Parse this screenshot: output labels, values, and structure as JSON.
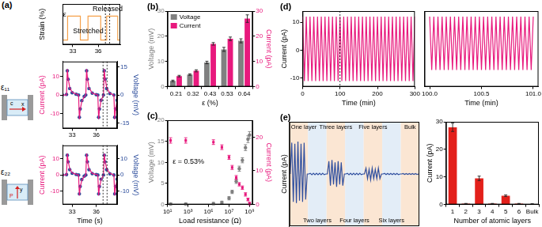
{
  "chart_data": [
    {
      "type": "line",
      "title": "(a)",
      "y_label": "Strain (%)",
      "x": [
        31.8,
        32.4,
        32.4,
        33.9,
        33.9,
        34.8,
        34.8,
        36.3,
        36.3,
        37.0,
        37.0,
        38.3,
        38.3,
        38.6
      ],
      "series": [
        {
          "color": "#f5a04a",
          "values": [
            0,
            0,
            0.53,
            0.53,
            0,
            0,
            0.53,
            0.53,
            0,
            0,
            0.53,
            0.53,
            0,
            0
          ]
        }
      ],
      "xlim": [
        31.8,
        38.6
      ],
      "xticks": [
        33,
        36
      ],
      "ylim": [
        -0.1,
        0.8
      ],
      "tick_labels": "x",
      "grid": false,
      "vlines": [
        36.85,
        37.35
      ],
      "annotations": [
        "ε",
        "Released",
        "Stretched"
      ]
    },
    {
      "type": "line",
      "y_label": "Current (pA)",
      "y2_label": "Voltage (mV)",
      "schematic": [
        "ε₁₁",
        "x",
        "c"
      ],
      "x": [
        31.8,
        32.3,
        32.4,
        32.5,
        32.7,
        33.0,
        33.5,
        33.8,
        33.9,
        34.0,
        34.2,
        34.5,
        34.7,
        34.8,
        34.9,
        35.1,
        35.5,
        36.0,
        36.2,
        36.3,
        36.4,
        36.6,
        36.9,
        37.0,
        37.1,
        37.3,
        37.7,
        38.2,
        38.3,
        38.4,
        38.6
      ],
      "series": [
        {
          "color": "#e8197d",
          "values": [
            0,
            0,
            14,
            9,
            4,
            1.5,
            0.5,
            0,
            -13,
            -8,
            -3.5,
            -1,
            0,
            14,
            9,
            4,
            1,
            0.3,
            0,
            -13,
            -8,
            -3,
            0,
            14,
            9,
            4,
            1,
            0,
            -13,
            -8,
            -3
          ]
        },
        {
          "color": "#2b4c9b",
          "type": "scatter",
          "marker": "circle",
          "axis": "y2",
          "values": [
            0,
            0.3,
            13,
            8.5,
            3.5,
            1.2,
            0.4,
            0,
            -12,
            -7.5,
            -3,
            -0.8,
            0,
            13,
            8.5,
            3.5,
            1,
            0.2,
            0,
            -12,
            -7.5,
            -2.8,
            0,
            13,
            8.5,
            3.5,
            0.8,
            0,
            -12,
            -7.5,
            -2.8
          ]
        }
      ],
      "xlim": [
        31.8,
        38.6
      ],
      "xticks": [
        33,
        36
      ],
      "ylim": [
        -18,
        18
      ],
      "yticks": [
        -10,
        0,
        10
      ],
      "y2lim": [
        -18,
        18
      ],
      "y2ticks": [
        -15,
        0,
        15
      ],
      "grid": false,
      "vlines": [
        36.85,
        37.35
      ]
    },
    {
      "type": "line",
      "x_label": "Time (s)",
      "y_label": "Current (pA)",
      "y2_label": "Voltage (mV)",
      "schematic": [
        "ε₂₂",
        "y",
        "P"
      ],
      "x": [
        31.8,
        32.3,
        32.4,
        32.5,
        32.7,
        33.0,
        33.5,
        33.8,
        33.9,
        34.0,
        34.2,
        34.5,
        34.7,
        34.8,
        34.9,
        35.1,
        35.5,
        36.0,
        36.2,
        36.3,
        36.4,
        36.6,
        36.9,
        37.0,
        37.1,
        37.3,
        37.7,
        38.2,
        38.3,
        38.4,
        38.6
      ],
      "series": [
        {
          "color": "#e8197d",
          "values": [
            0,
            0,
            13,
            8.5,
            3.8,
            1.3,
            0.4,
            0,
            -12.5,
            -7.8,
            -3.2,
            -0.9,
            0,
            13,
            8.5,
            3.8,
            1,
            0.3,
            0,
            -12.5,
            -7.8,
            -3,
            0,
            13,
            8.5,
            3.8,
            1,
            0,
            -12.5,
            -7.8,
            -3
          ]
        },
        {
          "color": "#2b4c9b",
          "type": "scatter",
          "marker": "circle",
          "axis": "y2",
          "values": [
            0,
            0.2,
            12,
            8,
            3.2,
            1,
            0.3,
            0,
            -11.5,
            -7,
            -2.8,
            -0.7,
            0,
            12,
            8,
            3.2,
            0.8,
            0.2,
            0,
            -11.5,
            -7,
            -2.6,
            0,
            12,
            8,
            3.2,
            0.7,
            0,
            -11.5,
            -7,
            -2.6
          ]
        }
      ],
      "xlim": [
        31.8,
        38.6
      ],
      "xticks": [
        33,
        36
      ],
      "ylim": [
        -18,
        18
      ],
      "yticks": [
        -10,
        0,
        10
      ],
      "y2lim": [
        -18,
        18
      ],
      "y2ticks": [
        -10,
        0,
        10
      ],
      "grid": false,
      "vlines": [
        36.85,
        37.35
      ]
    },
    {
      "type": "bar",
      "title": "(b)",
      "categories": [
        "0.21",
        "0.32",
        "0.43",
        "0.53",
        "0.64"
      ],
      "x_label": "ε (%)",
      "y_label": "Voltage (mV)",
      "y2_label": "Current (pA)",
      "series": [
        {
          "name": "Voltage",
          "color": "#808080",
          "values": [
            2.3,
            4.8,
            9.6,
            14.8,
            18.2
          ],
          "errors": [
            0.3,
            0.3,
            0.5,
            0.8,
            0.8
          ]
        },
        {
          "name": "Current",
          "color": "#e8197d",
          "axis": "y2",
          "values": [
            4.2,
            6.3,
            17,
            19,
            27
          ],
          "errors": [
            0.3,
            0.4,
            0.5,
            0.7,
            1.5
          ]
        }
      ],
      "ylim": [
        0,
        30
      ],
      "yticks": [
        0,
        10,
        20,
        30
      ],
      "y2lim": [
        0,
        30
      ],
      "y2ticks": [
        0,
        10,
        20,
        30
      ],
      "legend": "top-left",
      "grid": false
    },
    {
      "type": "scatter",
      "title": "(c)",
      "x_label": "Load resistance (Ω)",
      "y_label": "Voltage (mV)",
      "y2_label": "Current (pA)",
      "log": "x",
      "x": [
        20,
        600,
        300000,
        2000000,
        10000000,
        20000000,
        50000000,
        100000000,
        200000000,
        400000000,
        700000000,
        1000000000
      ],
      "series": [
        {
          "color": "#808080",
          "marker": "circle",
          "values": [
            0.1,
            0.1,
            0.2,
            0.5,
            1.5,
            3,
            5.5,
            8.5,
            10.5,
            13.5,
            15.5,
            16.5
          ],
          "errors": [
            0.3,
            0.3,
            0.3,
            0.3,
            0.4,
            0.4,
            0.5,
            0.6,
            0.6,
            0.7,
            0.8,
            0.8
          ]
        },
        {
          "color": "#e8197d",
          "marker": "square",
          "axis": "y2",
          "values": [
            19,
            19,
            18.5,
            17,
            14,
            11,
            8,
            6,
            5,
            3,
            1.5,
            0.3
          ],
          "errors": [
            0.8,
            0.8,
            0.7,
            0.7,
            0.6,
            0.6,
            0.6,
            0.5,
            0.5,
            0.5,
            0.4,
            0.4
          ]
        }
      ],
      "xlim": [
        10,
        2000000000
      ],
      "xticks": [
        {
          "value": 10,
          "label": "10¹"
        },
        {
          "value": 1000,
          "label": "10³"
        },
        {
          "value": 100000,
          "label": "10⁵"
        },
        {
          "value": 10000000,
          "label": "10⁷"
        },
        {
          "value": 1000000000,
          "label": "10⁹"
        }
      ],
      "ylim": [
        0,
        20
      ],
      "yticks": [
        0,
        5,
        10,
        15,
        20
      ],
      "y2lim": [
        0,
        25
      ],
      "y2ticks": [
        0,
        10,
        20
      ],
      "annotations": [
        "ε = 0.53%"
      ],
      "grid": false
    },
    {
      "type": "line",
      "title": "(d)",
      "x_label": "Time (min)",
      "y_label": "Current (pA)",
      "x": [
        0,
        5,
        10,
        15,
        20,
        25,
        30,
        35,
        40,
        45,
        50,
        55,
        60,
        65,
        70,
        75,
        80,
        85,
        90,
        95,
        100,
        105,
        110,
        115,
        120,
        125,
        130,
        135,
        140,
        145,
        150,
        155,
        160,
        165,
        170,
        175,
        180,
        185,
        190,
        195,
        200,
        205,
        210,
        215,
        220,
        225,
        230,
        235,
        240,
        245,
        250,
        255,
        260,
        265,
        270,
        275,
        280,
        285,
        290,
        295,
        300
      ],
      "series": [
        {
          "color": "#e8197d",
          "values": [
            12,
            -11,
            12,
            -11,
            12,
            -11,
            12,
            -11,
            12,
            -11,
            12,
            -11,
            12,
            -11,
            12,
            -11,
            12,
            -11,
            12,
            -11,
            12,
            -11,
            12,
            -11,
            12,
            -11,
            12,
            -11,
            12,
            -11,
            12,
            -11,
            12,
            -11,
            12,
            -11,
            12,
            -11,
            12,
            -11,
            12,
            -11,
            12,
            -11,
            12,
            -11,
            12,
            -11,
            12,
            -11,
            12,
            -11,
            12,
            -11,
            12,
            -11,
            12,
            -11,
            12,
            -11,
            12
          ]
        }
      ],
      "xlim": [
        0,
        300
      ],
      "xticks": [
        0,
        100,
        200,
        300
      ],
      "ylim": [
        -13,
        14
      ],
      "yticks": [
        -10,
        0,
        10
      ],
      "vlines": [
        100
      ],
      "grid": false
    },
    {
      "type": "line",
      "x_label": "Time (min)",
      "x": [
        100,
        100.02,
        100.04,
        100.06,
        100.08,
        100.1,
        100.12,
        100.14,
        100.16,
        100.18,
        100.2,
        100.22,
        100.24,
        100.26,
        100.28,
        100.3,
        100.32,
        100.34,
        100.36,
        100.38,
        100.4,
        100.42,
        100.44,
        100.46,
        100.48,
        100.5,
        100.52,
        100.54,
        100.56,
        100.58,
        100.6,
        100.62,
        100.64,
        100.66,
        100.68,
        100.7,
        100.72,
        100.74,
        100.76,
        100.78,
        100.8,
        100.82,
        100.84,
        100.86,
        100.88,
        100.9,
        100.92,
        100.94,
        100.96,
        100.98,
        101
      ],
      "series": [
        {
          "color": "#e8197d",
          "values": [
            12,
            -7,
            12,
            -7,
            12,
            -7,
            12,
            -7,
            12,
            -7,
            12,
            -7,
            12,
            -7,
            12,
            -7,
            12,
            -7,
            12,
            -7,
            12,
            -7,
            12,
            -7,
            12,
            -7,
            12,
            -7,
            12,
            -7,
            12,
            -7,
            12,
            -7,
            12,
            -7,
            12,
            -7,
            12,
            -7,
            12,
            -7,
            12,
            -7,
            12,
            -7,
            12,
            -7,
            12,
            -7,
            12
          ]
        }
      ],
      "xlim": [
        99.95,
        101.05
      ],
      "xticks": [
        {
          "value": 100,
          "label": "100.0"
        },
        {
          "value": 100.5,
          "label": "100.5"
        },
        {
          "value": 101,
          "label": "101.0"
        }
      ],
      "ylim": [
        -13,
        14
      ],
      "tick_labels": "x",
      "grid": false
    },
    {
      "type": "line",
      "title": "(e)",
      "y_label": "Current (pA)",
      "color": "#2f4f9f",
      "segments": [
        {
          "label": "One layer",
          "values": [
            0,
            27,
            -24,
            26,
            -25,
            28,
            -23,
            26,
            -24,
            27,
            -22,
            0
          ]
        },
        {
          "label": "Two layers",
          "values": [
            0,
            0.6,
            -0.6,
            0.6,
            -0.6,
            0.6,
            -0.6,
            0.6,
            -0.6,
            0.6,
            -0.6,
            0
          ]
        },
        {
          "label": "Three layers",
          "values": [
            0,
            11,
            -10,
            12,
            -9,
            10,
            -11,
            11,
            -9,
            10,
            -10,
            0
          ]
        },
        {
          "label": "Four layers",
          "values": [
            0,
            0.6,
            -0.6,
            0.6,
            -0.6,
            0.6,
            -0.6,
            0.6,
            -0.6,
            0.6,
            -0.6,
            0
          ]
        },
        {
          "label": "Five layers",
          "values": [
            0,
            5,
            -4,
            4,
            -5,
            5,
            -4,
            4,
            -4,
            5,
            -4,
            0
          ]
        },
        {
          "label": "Six layers",
          "values": [
            0,
            0.5,
            -0.5,
            0.5,
            -0.5,
            0.5,
            -0.5,
            0.5,
            -0.5,
            0.5,
            -0.5,
            0
          ]
        },
        {
          "label": "Bulk",
          "values": [
            0,
            0.4,
            -0.4,
            0.4,
            -0.4,
            0.4,
            -0.4,
            0.4,
            -0.4,
            0.4,
            -0.4,
            0
          ]
        }
      ],
      "ylim": [
        -45,
        45
      ],
      "tick_labels": false,
      "grid": false
    },
    {
      "type": "bar",
      "categories": [
        "1",
        "2",
        "3",
        "4",
        "5",
        "6",
        "Bulk"
      ],
      "x_label": "Number of atomic layers",
      "y_label": "Current (pA)",
      "series": [
        {
          "color": "#e3201b",
          "values": [
            28,
            0.3,
            9.5,
            0.3,
            3.2,
            0.3,
            0.2
          ],
          "errors": [
            1.5,
            0.1,
            0.8,
            0.1,
            0.3,
            0.1,
            0.1
          ]
        }
      ],
      "ylim": [
        0,
        30
      ],
      "yticks": [
        0,
        10,
        20,
        30
      ],
      "grid": false
    }
  ]
}
